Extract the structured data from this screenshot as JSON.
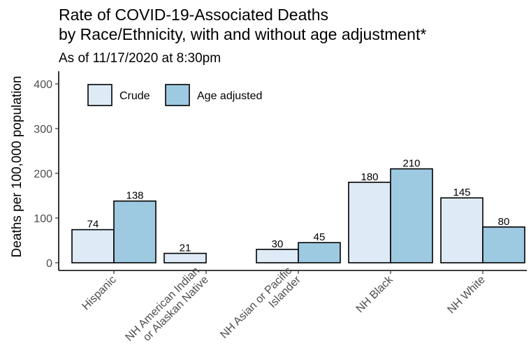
{
  "title_line1": "Rate of COVID-19-Associated Deaths",
  "title_line2": "by Race/Ethnicity, with and without age adjustment*",
  "subtitle": "As of 11/17/2020 at 8:30pm",
  "chart_data": {
    "type": "bar",
    "ylabel": "Deaths per 100,000 population",
    "xlabel": "",
    "ylim": [
      0,
      400
    ],
    "yticks": [
      0,
      100,
      200,
      300,
      400
    ],
    "grid": false,
    "legend_position": "top-left",
    "categories": [
      [
        "Hispanic"
      ],
      [
        "NH American Indian",
        "or Alaskan Native"
      ],
      [
        "NH Asian or Pacific",
        "Islander"
      ],
      [
        "NH Black"
      ],
      [
        "NH White"
      ]
    ],
    "series": [
      {
        "name": "Crude",
        "color": "#deebf7",
        "values": [
          74,
          21,
          30,
          180,
          145
        ]
      },
      {
        "name": "Age adjusted",
        "color": "#9ecae1",
        "values": [
          138,
          null,
          45,
          210,
          80
        ]
      }
    ]
  }
}
